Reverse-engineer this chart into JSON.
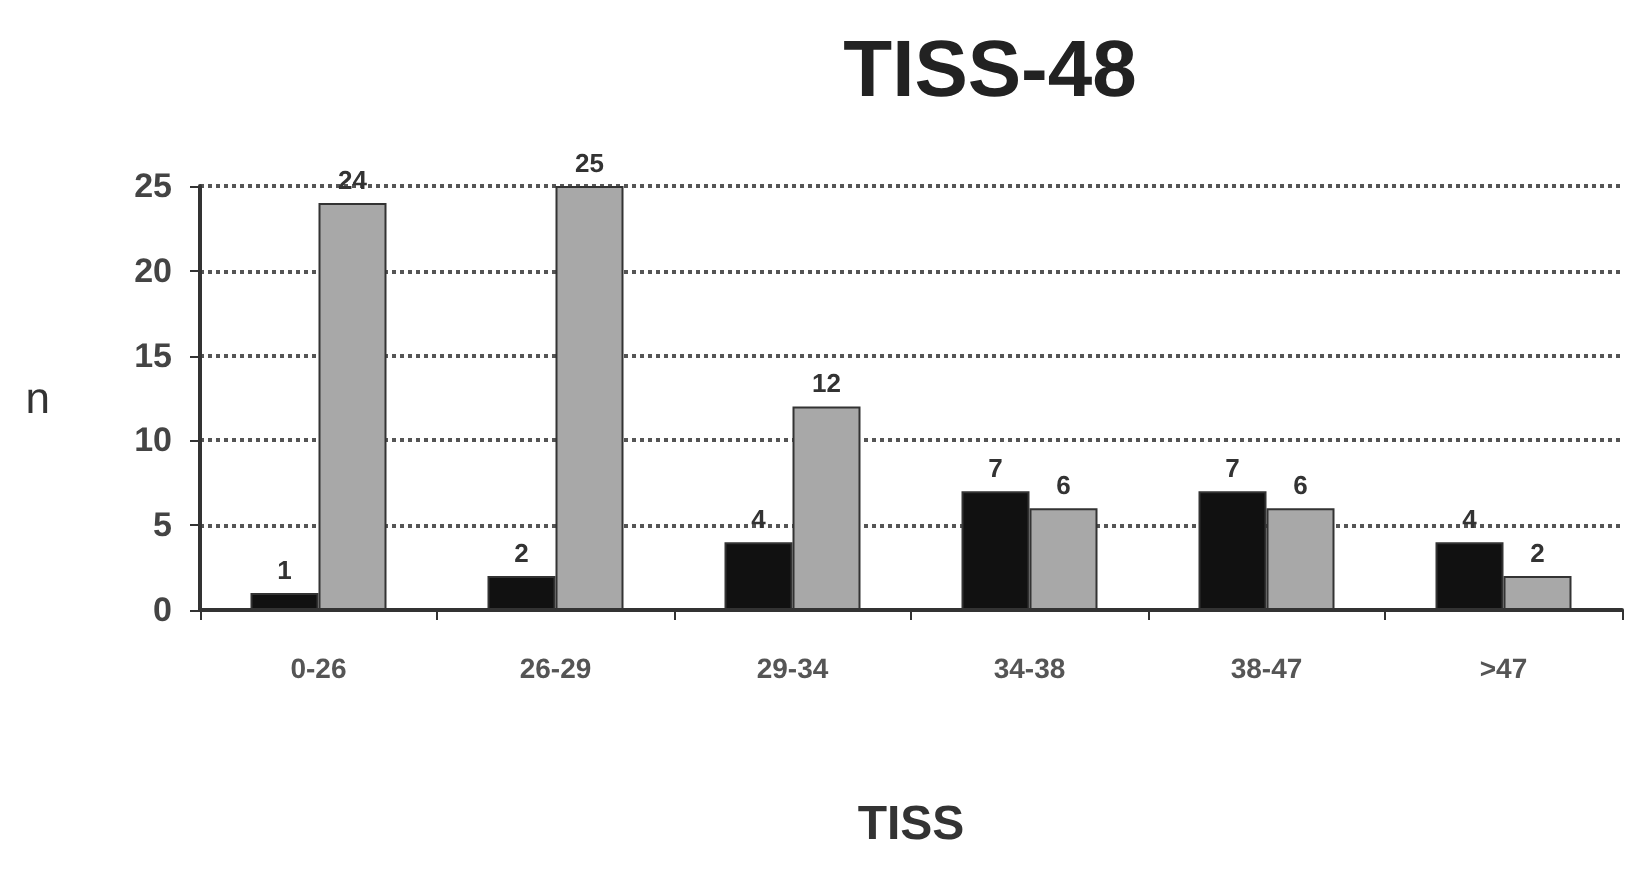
{
  "chart_data": {
    "type": "bar",
    "title": "TISS-48",
    "xlabel": "TISS",
    "ylabel": "n",
    "categories": [
      "0-26",
      "26-29",
      "29-34",
      "34-38",
      "38-47",
      ">47"
    ],
    "series": [
      {
        "color": "#111111",
        "values": [
          1,
          2,
          4,
          7,
          7,
          4
        ]
      },
      {
        "color": "#a8a8a8",
        "values": [
          24,
          25,
          12,
          6,
          6,
          2
        ]
      }
    ],
    "ylim": [
      0,
      25
    ],
    "yticks": [
      0,
      5,
      10,
      15,
      20,
      25
    ],
    "grid": "y",
    "data_labels": true
  }
}
